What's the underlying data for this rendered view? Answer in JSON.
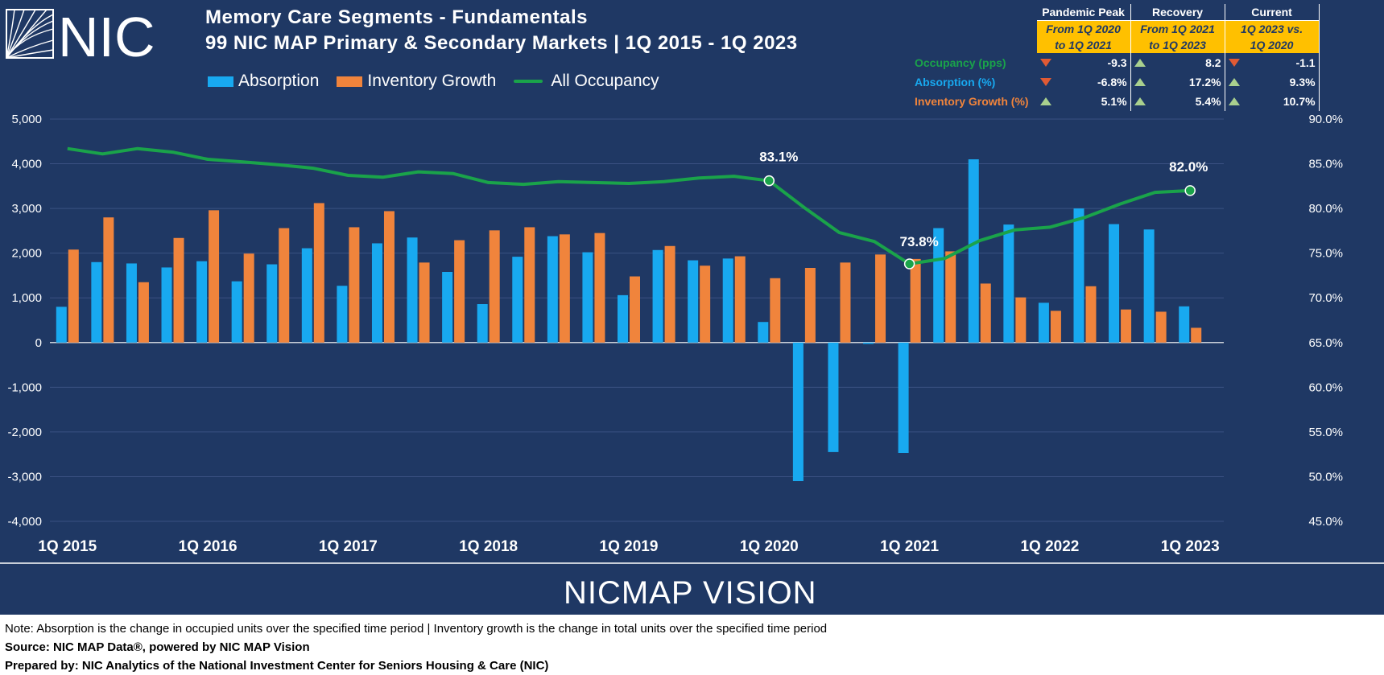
{
  "header": {
    "logo_text": "NIC",
    "title_line1": "Memory Care Segments - Fundamentals",
    "title_line2": "99 NIC MAP Primary & Secondary Markets | 1Q 2015 - 1Q 2023"
  },
  "legend": {
    "absorption": "Absorption",
    "inventory": "Inventory Growth",
    "occupancy": "All Occupancy"
  },
  "colors": {
    "background": "#1f3864",
    "absorption": "#18a9f0",
    "inventory": "#f0843c",
    "occupancy": "#1aa34a",
    "highlight": "#ffc000"
  },
  "summary_table": {
    "headers": [
      "Pandemic Peak",
      "Recovery",
      "Current"
    ],
    "subheaders": [
      [
        "From 1Q 2020",
        "to 1Q 2021"
      ],
      [
        "From 1Q 2021",
        "to 1Q 2023"
      ],
      [
        "1Q 2023 vs.",
        "1Q 2020"
      ]
    ],
    "rows": [
      {
        "label": "Occupancy (pps)",
        "color": "#1aa34a",
        "values": [
          "-9.3",
          "8.2",
          "-1.1"
        ],
        "trend": [
          "down",
          "up",
          "down"
        ]
      },
      {
        "label": "Absorption (%)",
        "color": "#18a9f0",
        "values": [
          "-6.8%",
          "17.2%",
          "9.3%"
        ],
        "trend": [
          "down",
          "up",
          "up"
        ]
      },
      {
        "label": "Inventory Growth (%)",
        "color": "#f0843c",
        "values": [
          "5.1%",
          "5.4%",
          "10.7%"
        ],
        "trend": [
          "up",
          "up",
          "up"
        ]
      }
    ]
  },
  "chart_data": {
    "type": "bar",
    "categories": [
      "1Q 2015",
      "2Q 2015",
      "3Q 2015",
      "4Q 2015",
      "1Q 2016",
      "2Q 2016",
      "3Q 2016",
      "4Q 2016",
      "1Q 2017",
      "2Q 2017",
      "3Q 2017",
      "4Q 2017",
      "1Q 2018",
      "2Q 2018",
      "3Q 2018",
      "4Q 2018",
      "1Q 2019",
      "2Q 2019",
      "3Q 2019",
      "4Q 2019",
      "1Q 2020",
      "2Q 2020",
      "3Q 2020",
      "4Q 2020",
      "1Q 2021",
      "2Q 2021",
      "3Q 2021",
      "4Q 2021",
      "1Q 2022",
      "2Q 2022",
      "3Q 2022",
      "4Q 2022",
      "1Q 2023"
    ],
    "x_tick_labels": [
      "1Q 2015",
      "1Q 2016",
      "1Q 2017",
      "1Q 2018",
      "1Q 2019",
      "1Q 2020",
      "1Q 2021",
      "1Q 2022",
      "1Q 2023"
    ],
    "series": [
      {
        "name": "Absorption",
        "axis": "left",
        "type": "bar",
        "values": [
          800,
          1800,
          1770,
          1680,
          1820,
          1370,
          1750,
          2110,
          1270,
          2220,
          2350,
          1580,
          860,
          1920,
          2380,
          2020,
          1060,
          2070,
          1840,
          1880,
          460,
          -3100,
          -2450,
          -30,
          -2470,
          2560,
          4100,
          2640,
          890,
          3000,
          2650,
          2530,
          810
        ]
      },
      {
        "name": "Inventory Growth",
        "axis": "left",
        "type": "bar",
        "values": [
          2080,
          2800,
          1350,
          2340,
          2960,
          1990,
          2560,
          3120,
          2580,
          2940,
          1790,
          2290,
          2510,
          2580,
          2420,
          2450,
          1480,
          2160,
          1720,
          1930,
          1440,
          1670,
          1790,
          1970,
          1870,
          2040,
          1320,
          1010,
          710,
          1260,
          740,
          690,
          330
        ]
      },
      {
        "name": "All Occupancy",
        "axis": "right",
        "type": "line",
        "values": [
          86.7,
          86.1,
          86.7,
          86.3,
          85.5,
          85.2,
          84.9,
          84.5,
          83.7,
          83.5,
          84.1,
          83.9,
          82.9,
          82.7,
          83.0,
          82.9,
          82.8,
          83.0,
          83.4,
          83.6,
          83.1,
          80.1,
          77.3,
          76.3,
          73.8,
          74.4,
          76.4,
          77.6,
          77.9,
          79.0,
          80.5,
          81.8,
          82.0
        ]
      }
    ],
    "annotations": [
      {
        "category": "1Q 2020",
        "value": 83.1,
        "label": "83.1%"
      },
      {
        "category": "1Q 2021",
        "value": 73.8,
        "label": "73.8%"
      },
      {
        "category": "1Q 2023",
        "value": 82.0,
        "label": "82.0%"
      }
    ],
    "y_left": {
      "min": -4000,
      "max": 5000,
      "step": 1000,
      "tick_labels": [
        "-4,000",
        "-3,000",
        "-2,000",
        "-1,000",
        "0",
        "1,000",
        "2,000",
        "3,000",
        "4,000",
        "5,000"
      ]
    },
    "y_right": {
      "min": 45,
      "max": 90,
      "step": 5,
      "tick_labels": [
        "45.0%",
        "50.0%",
        "55.0%",
        "60.0%",
        "65.0%",
        "70.0%",
        "75.0%",
        "80.0%",
        "85.0%",
        "90.0%"
      ]
    },
    "grid": true,
    "legend_position": "top-left"
  },
  "footer": {
    "brand": "NICMAP VISION",
    "note": "Note: Absorption is the change in occupied units over the specified time period | Inventory growth is the change in total units over the specified time period",
    "source": "Source: NIC MAP Data®, powered by NIC MAP Vision",
    "prepared": "Prepared by: NIC Analytics of the National Investment Center for Seniors Housing & Care (NIC)"
  }
}
